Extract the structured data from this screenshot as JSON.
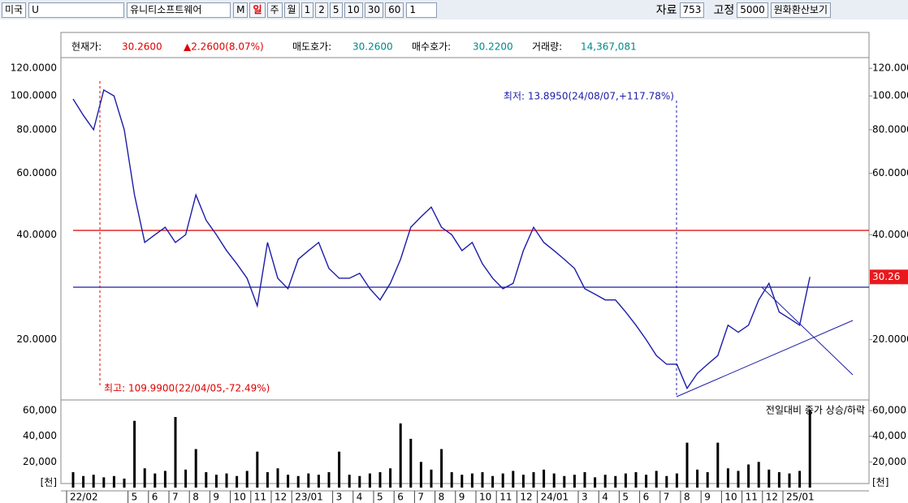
{
  "toolbar": {
    "market": "미국",
    "symbol": "U",
    "name": "유니티소프트웨어",
    "buttons": [
      "M",
      "일",
      "주",
      "월",
      "1",
      "2",
      "5",
      "10",
      "30",
      "60"
    ],
    "period": "1",
    "data_label": "자료",
    "data_count": "753",
    "fixed_label": "고정",
    "fixed_value": "5000",
    "convert_button": "원화환산보기"
  },
  "info": {
    "price_label": "현재가:",
    "price": "30.2600",
    "change": "▲2.2600(8.07%)",
    "ask_label": "매도호가:",
    "ask": "30.2600",
    "bid_label": "매수호가:",
    "bid": "30.2200",
    "volume_label": "거래량:",
    "volume": "14,367,081"
  },
  "chart_data": [
    {
      "type": "line",
      "log_scale": true,
      "color": "#1c1ca8",
      "categories": [
        "22/02",
        null,
        null,
        null,
        null,
        null,
        "5",
        null,
        "6",
        null,
        "7",
        null,
        "8",
        null,
        "9",
        null,
        "10",
        null,
        "11",
        null,
        "12",
        null,
        "23/01",
        null,
        null,
        null,
        "3",
        null,
        "4",
        null,
        "5",
        null,
        "6",
        null,
        "7",
        null,
        "8",
        null,
        "9",
        null,
        "10",
        null,
        "11",
        null,
        "12",
        null,
        "24/01",
        null,
        null,
        null,
        "3",
        null,
        "4",
        null,
        "5",
        null,
        "6",
        null,
        "7",
        null,
        "8",
        null,
        "9",
        null,
        "10",
        null,
        "11",
        null,
        "12",
        null,
        "25/01",
        null,
        null
      ],
      "values": [
        98,
        88,
        80,
        104,
        100,
        80,
        52,
        38,
        40,
        42,
        38,
        40,
        52,
        44,
        40,
        36,
        33,
        30,
        25,
        38,
        30,
        28,
        34,
        36,
        38,
        32,
        30,
        30,
        31,
        28,
        26,
        29,
        34,
        42,
        45,
        48,
        42,
        40,
        36,
        38,
        33,
        30,
        28,
        29,
        36,
        42,
        38,
        36,
        34,
        32,
        28,
        27,
        26,
        26,
        24,
        22,
        20,
        18,
        17,
        17,
        14.5,
        16,
        17,
        18,
        22,
        21,
        22,
        26,
        29,
        24,
        23,
        22,
        30.26
      ],
      "ylim": [
        13.5,
        133
      ],
      "yticks": [
        {
          "value": 20,
          "label": "20.0000"
        },
        {
          "value": 40,
          "label": "40.0000"
        },
        {
          "value": 60,
          "label": "60.0000"
        },
        {
          "value": 80,
          "label": "80.0000"
        },
        {
          "value": 100,
          "label": "100.0000"
        },
        {
          "value": 120,
          "label": "120.0000"
        }
      ],
      "current_label": {
        "value": 30.26,
        "label": "30.26"
      },
      "annotations": [
        "최저: 13.8950(24/08/07,+117.78%)",
        "최고: 109.9900(22/04/05,-72.49%)"
      ]
    },
    {
      "type": "bar",
      "title": "전일대비 종가 상승/하락",
      "unit": "[천]",
      "color": "#000000",
      "values": [
        12000,
        9000,
        10000,
        8000,
        9000,
        7000,
        52000,
        15000,
        11000,
        13000,
        55000,
        14000,
        30000,
        12000,
        10000,
        11000,
        9000,
        13000,
        28000,
        12000,
        15000,
        10000,
        9000,
        11000,
        10000,
        12000,
        28000,
        10000,
        9000,
        11000,
        12000,
        15000,
        50000,
        38000,
        20000,
        14000,
        30000,
        12000,
        10000,
        11000,
        12000,
        9000,
        11000,
        13000,
        10000,
        12000,
        14000,
        11000,
        9000,
        10000,
        12000,
        8000,
        10000,
        9000,
        11000,
        12000,
        10000,
        13000,
        9000,
        11000,
        35000,
        14000,
        12000,
        35000,
        15000,
        13000,
        18000,
        20000,
        14000,
        12000,
        11000,
        13000,
        60000
      ],
      "ylim": [
        0,
        67000
      ],
      "yticks": [
        {
          "value": 20000,
          "label": "20,000"
        },
        {
          "value": 40000,
          "label": "40,000"
        },
        {
          "value": 60000,
          "label": "60,000"
        }
      ]
    }
  ]
}
